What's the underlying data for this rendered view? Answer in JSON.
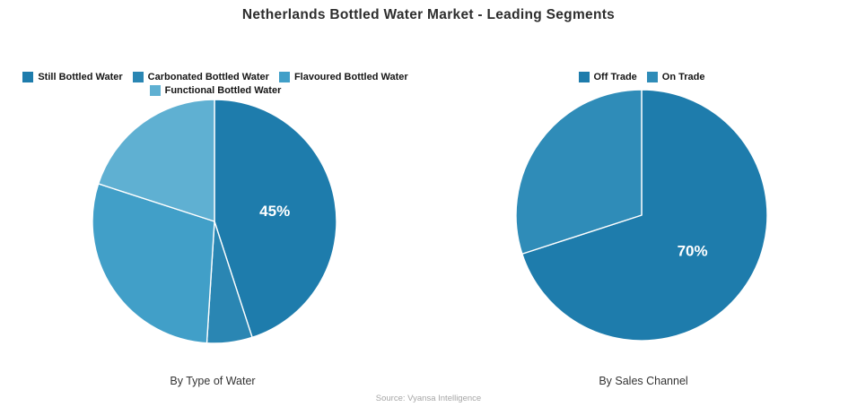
{
  "title": "Netherlands Bottled Water Market - Leading Segments",
  "source": "Source: Vyansa Intelligence",
  "palette": {
    "dark_blue": "#1e7cac",
    "mid_dark_blue": "#2a86b3",
    "medium_blue": "#419fc8",
    "light_blue": "#5fb0d2",
    "on_trade_blue": "#2f8cb8",
    "slice_border": "#ffffff",
    "label_text": "#ffffff"
  },
  "chart_data": [
    {
      "type": "pie",
      "title": "By Type of Water",
      "legend_position": "top",
      "start_angle_deg": 0,
      "direction": "clockwise",
      "categories": [
        "Still Bottled Water",
        "Carbonated Bottled Water",
        "Flavoured Bottled Water",
        "Functional Bottled Water"
      ],
      "values": [
        45,
        6,
        29,
        20
      ],
      "colors": [
        "#1e7cac",
        "#2a86b3",
        "#419fc8",
        "#5fb0d2"
      ],
      "slice_labels": [
        "45%",
        "",
        "",
        ""
      ]
    },
    {
      "type": "pie",
      "title": "By Sales Channel",
      "legend_position": "top",
      "start_angle_deg": 0,
      "direction": "clockwise",
      "categories": [
        "Off Trade",
        "On Trade"
      ],
      "values": [
        70,
        30
      ],
      "colors": [
        "#1e7cac",
        "#2f8cb8"
      ],
      "slice_labels": [
        "70%",
        ""
      ]
    }
  ]
}
